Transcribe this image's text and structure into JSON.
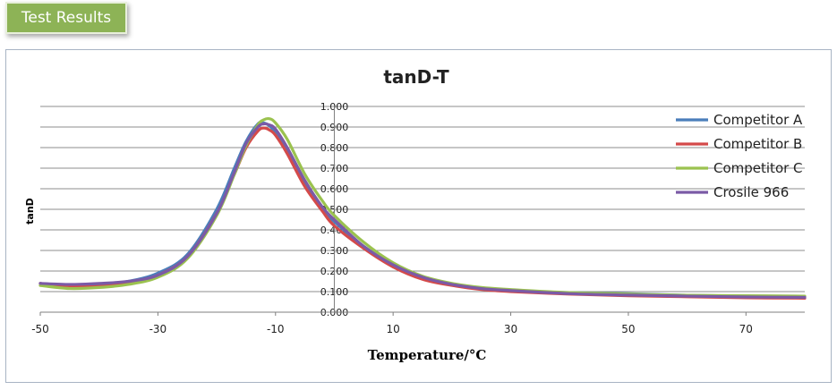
{
  "header": {
    "badge_label": "Test Results"
  },
  "colors": {
    "badge_bg": "#8db356",
    "frame_border": "#a8b4c4"
  },
  "chart_data": {
    "type": "line",
    "title": "tanD-T",
    "xlabel": "Temperature/°C",
    "ylabel": "tanD",
    "xlim": [
      -50,
      80
    ],
    "ylim": [
      0,
      1
    ],
    "x_ticks": [
      -50,
      -30,
      -10,
      10,
      30,
      50,
      70
    ],
    "x_tick_labels": [
      "-50",
      "-30",
      "-10",
      "10",
      "30",
      "50",
      "70"
    ],
    "y_ticks": [
      0,
      0.1,
      0.2,
      0.3,
      0.4,
      0.5,
      0.6,
      0.7,
      0.8,
      0.9,
      1.0
    ],
    "y_tick_labels": [
      "0.000",
      "0.100",
      "0.200",
      "0.300",
      "0.400",
      "0.500",
      "0.600",
      "0.700",
      "0.800",
      "0.900",
      "1.000"
    ],
    "grid": true,
    "legend_position": "top-right",
    "x": [
      -50,
      -45,
      -40,
      -35,
      -30,
      -25,
      -20,
      -17,
      -15,
      -13,
      -12,
      -11,
      -10,
      -8,
      -5,
      -2,
      0,
      5,
      10,
      15,
      20,
      25,
      30,
      40,
      50,
      60,
      70,
      80
    ],
    "series": [
      {
        "name": "Competitor A",
        "color": "#4a7ebb",
        "values": [
          0.14,
          0.13,
          0.135,
          0.15,
          0.19,
          0.28,
          0.5,
          0.7,
          0.83,
          0.915,
          0.92,
          0.905,
          0.87,
          0.78,
          0.62,
          0.5,
          0.44,
          0.32,
          0.23,
          0.17,
          0.135,
          0.115,
          0.105,
          0.095,
          0.09,
          0.082,
          0.078,
          0.075
        ]
      },
      {
        "name": "Competitor B",
        "color": "#d44a4a",
        "values": [
          0.14,
          0.125,
          0.125,
          0.14,
          0.18,
          0.27,
          0.48,
          0.67,
          0.8,
          0.88,
          0.895,
          0.885,
          0.86,
          0.77,
          0.61,
          0.49,
          0.42,
          0.31,
          0.22,
          0.16,
          0.13,
          0.11,
          0.1,
          0.088,
          0.08,
          0.075,
          0.07,
          0.068
        ]
      },
      {
        "name": "Competitor C",
        "color": "#9bc24f",
        "values": [
          0.13,
          0.115,
          0.12,
          0.135,
          0.17,
          0.26,
          0.47,
          0.67,
          0.81,
          0.91,
          0.935,
          0.94,
          0.92,
          0.84,
          0.67,
          0.54,
          0.47,
          0.34,
          0.24,
          0.175,
          0.14,
          0.12,
          0.11,
          0.095,
          0.088,
          0.082,
          0.08,
          0.078
        ]
      },
      {
        "name": "Crosile 966",
        "color": "#7b5aa6",
        "values": [
          0.14,
          0.135,
          0.14,
          0.15,
          0.18,
          0.27,
          0.48,
          0.68,
          0.82,
          0.9,
          0.915,
          0.91,
          0.89,
          0.8,
          0.64,
          0.51,
          0.45,
          0.32,
          0.23,
          0.17,
          0.135,
          0.115,
          0.105,
          0.09,
          0.083,
          0.078,
          0.074,
          0.072
        ]
      }
    ]
  }
}
